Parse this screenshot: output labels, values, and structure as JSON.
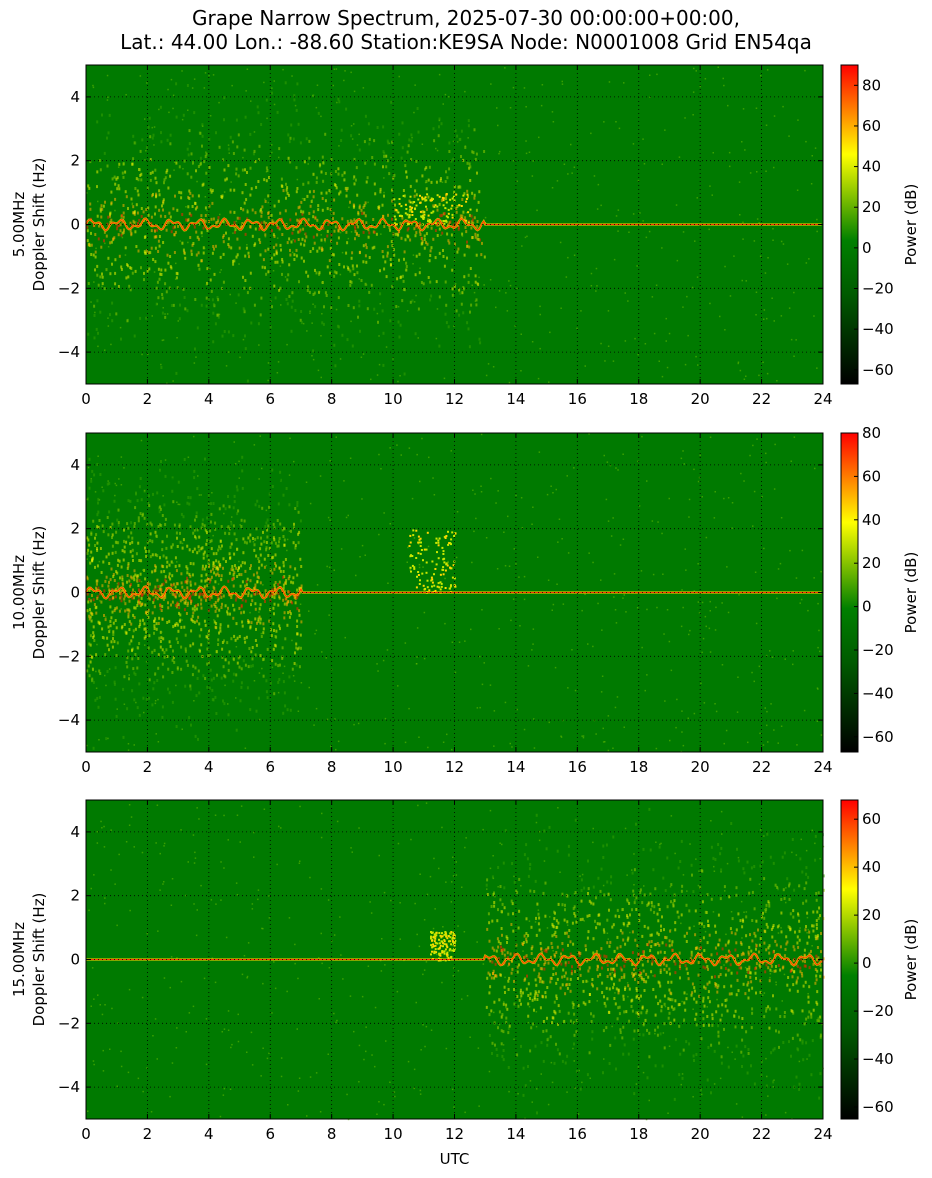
{
  "figure": {
    "title_line1": "Grape Narrow Spectrum, 2025-07-30 00:00:00+00:00,",
    "title_line2": "Lat.: 44.00 Lon.: -88.60 Station:KE9SA Node: N0001008 Grid EN54qa"
  },
  "colors": {
    "background_green": "#007a00",
    "colormap": [
      "#000000",
      "#005a00",
      "#008000",
      "#ffff00",
      "#ff0000"
    ],
    "grid": "#000000"
  },
  "chart_data": [
    {
      "type": "heatmap",
      "ylabel_line1": "5.00MHz",
      "ylabel_line2": "Doppler Shift (Hz)",
      "xlabel": "",
      "xlim": [
        0,
        24
      ],
      "ylim": [
        -5,
        5
      ],
      "x_ticks": [
        0,
        2,
        4,
        6,
        8,
        10,
        12,
        14,
        16,
        18,
        20,
        22,
        24
      ],
      "y_ticks": [
        -4,
        -2,
        0,
        2,
        4
      ],
      "grid": true,
      "colorbar": {
        "label": "Power (dB)",
        "range": [
          -67,
          90
        ],
        "ticks": [
          -60,
          -40,
          -20,
          0,
          20,
          40,
          60,
          80
        ]
      },
      "features": {
        "carrier_doppler_hz": 0,
        "broadband_span_utc": [
          0,
          13
        ],
        "peak_doppler_excursion": {
          "utc": [
            10,
            12.5
          ],
          "doppler_hz": [
            0,
            1
          ]
        }
      }
    },
    {
      "type": "heatmap",
      "ylabel_line1": "10.00MHz",
      "ylabel_line2": "Doppler Shift (Hz)",
      "xlabel": "",
      "xlim": [
        0,
        24
      ],
      "ylim": [
        -5,
        5
      ],
      "x_ticks": [
        0,
        2,
        4,
        6,
        8,
        10,
        12,
        14,
        16,
        18,
        20,
        22,
        24
      ],
      "y_ticks": [
        -4,
        -2,
        0,
        2,
        4
      ],
      "grid": true,
      "colorbar": {
        "label": "Power (dB)",
        "range": [
          -67,
          80
        ],
        "ticks": [
          -60,
          -40,
          -20,
          0,
          20,
          40,
          60,
          80
        ]
      },
      "features": {
        "carrier_doppler_hz": 0,
        "broadband_span_utc": [
          0,
          7
        ],
        "peak_doppler_excursion": {
          "utc": [
            10.5,
            12
          ],
          "doppler_hz": [
            0,
            2
          ]
        }
      }
    },
    {
      "type": "heatmap",
      "ylabel_line1": "15.00MHz",
      "ylabel_line2": "Doppler Shift (Hz)",
      "xlabel": "UTC",
      "xlim": [
        0,
        24
      ],
      "ylim": [
        -5,
        5
      ],
      "x_ticks": [
        0,
        2,
        4,
        6,
        8,
        10,
        12,
        14,
        16,
        18,
        20,
        22,
        24
      ],
      "y_ticks": [
        -4,
        -2,
        0,
        2,
        4
      ],
      "grid": true,
      "colorbar": {
        "label": "Power (dB)",
        "range": [
          -65,
          68
        ],
        "ticks": [
          -60,
          -40,
          -20,
          0,
          20,
          40,
          60
        ]
      },
      "features": {
        "carrier_doppler_hz": 0,
        "broadband_span_utc": [
          13,
          24
        ],
        "peak_doppler_excursion": {
          "utc": [
            11.2,
            12
          ],
          "doppler_hz": [
            0,
            0.9
          ]
        }
      }
    }
  ]
}
